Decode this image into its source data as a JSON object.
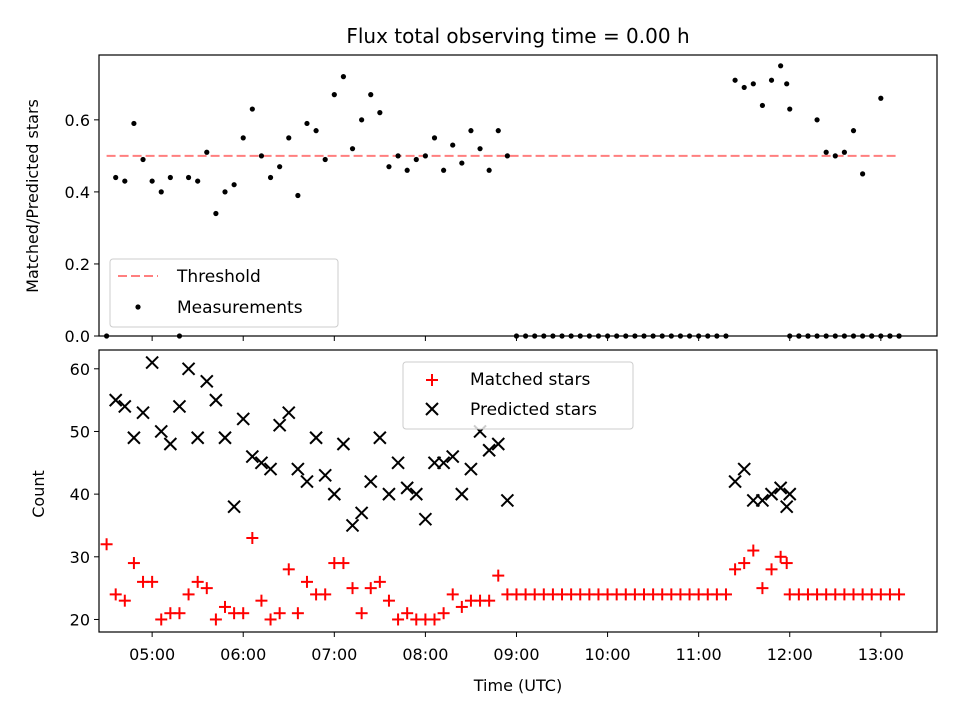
{
  "chart_data": [
    {
      "type": "scatter",
      "title": "Flux total observing time = 0.00 h",
      "xlabel": "",
      "ylabel": "Matched/Predicted stars",
      "xlim": [
        "04:25",
        "13:37"
      ],
      "ylim": [
        0,
        0.78
      ],
      "yticks": [
        0.0,
        0.2,
        0.4,
        0.6
      ],
      "ytick_labels": [
        "0.0",
        "0.2",
        "0.4",
        "0.6"
      ],
      "legend_position": "lower-left",
      "colors": {
        "threshold": "#ff7f7f",
        "measurements": "#000000"
      },
      "threshold": {
        "name": "Threshold",
        "value": 0.5,
        "x_start": "04:30",
        "x_end": "13:12"
      },
      "series": [
        {
          "name": "Measurements",
          "x": [
            "04:30",
            "04:36",
            "04:42",
            "04:48",
            "04:54",
            "05:00",
            "05:06",
            "05:12",
            "05:18",
            "05:24",
            "05:30",
            "05:36",
            "05:42",
            "05:48",
            "05:54",
            "06:00",
            "06:06",
            "06:12",
            "06:18",
            "06:24",
            "06:30",
            "06:36",
            "06:42",
            "06:48",
            "06:54",
            "07:00",
            "07:06",
            "07:12",
            "07:18",
            "07:24",
            "07:30",
            "07:36",
            "07:42",
            "07:48",
            "07:54",
            "08:00",
            "08:06",
            "08:12",
            "08:18",
            "08:24",
            "08:30",
            "08:36",
            "08:42",
            "08:48",
            "08:54",
            "11:24",
            "11:30",
            "11:36",
            "11:42",
            "11:48",
            "11:54",
            "11:58",
            "12:00",
            "12:06",
            "12:12",
            "12:18",
            "12:24",
            "12:30",
            "12:36",
            "12:42",
            "12:48",
            "12:54",
            "13:00",
            "13:06",
            "13:12"
          ],
          "y": [
            0.0,
            0.44,
            0.43,
            0.59,
            0.49,
            0.43,
            0.4,
            0.44,
            0.0,
            0.44,
            0.43,
            0.51,
            0.34,
            0.4,
            0.42,
            0.55,
            0.63,
            0.5,
            0.44,
            0.47,
            0.55,
            0.39,
            0.59,
            0.57,
            0.49,
            0.67,
            0.72,
            0.52,
            0.6,
            0.67,
            0.62,
            0.47,
            0.5,
            0.46,
            0.49,
            0.5,
            0.55,
            0.46,
            0.53,
            0.48,
            0.57,
            0.52,
            0.46,
            0.57,
            0.5,
            0.71,
            0.69,
            0.7,
            0.64,
            0.71,
            0.75,
            0.7,
            0.63,
            0.0,
            0.0,
            0.6,
            0.51,
            0.5,
            0.51,
            0.57,
            0.45,
            0.0,
            0.66,
            0.0,
            0.0
          ],
          "note_zero_run": "Continuous zero values from 09:00 to 11:18 and 12:00 to 13:12 every 6 minutes"
        }
      ],
      "zero_runs": [
        [
          "09:00",
          "11:18"
        ],
        [
          "12:00",
          "13:12"
        ]
      ]
    },
    {
      "type": "scatter",
      "title": "",
      "xlabel": "Time (UTC)",
      "ylabel": "Count",
      "xlim": [
        "04:25",
        "13:37"
      ],
      "ylim": [
        18,
        63
      ],
      "yticks": [
        20,
        30,
        40,
        50,
        60
      ],
      "ytick_labels": [
        "20",
        "30",
        "40",
        "50",
        "60"
      ],
      "xticks": [
        "05:00",
        "06:00",
        "07:00",
        "08:00",
        "09:00",
        "10:00",
        "11:00",
        "12:00",
        "13:00"
      ],
      "legend_position": "top-center",
      "colors": {
        "matched": "#ff0000",
        "predicted": "#000000"
      },
      "series": [
        {
          "name": "Matched stars",
          "marker": "plus",
          "x": [
            "04:30",
            "04:36",
            "04:42",
            "04:48",
            "04:54",
            "05:00",
            "05:06",
            "05:12",
            "05:18",
            "05:24",
            "05:30",
            "05:36",
            "05:42",
            "05:48",
            "05:54",
            "06:00",
            "06:06",
            "06:12",
            "06:18",
            "06:24",
            "06:30",
            "06:36",
            "06:42",
            "06:48",
            "06:54",
            "07:00",
            "07:06",
            "07:12",
            "07:18",
            "07:24",
            "07:30",
            "07:36",
            "07:42",
            "07:48",
            "07:54",
            "08:00",
            "08:06",
            "08:12",
            "08:18",
            "08:24",
            "08:30",
            "08:36",
            "08:42",
            "08:48",
            "08:54",
            "11:24",
            "11:30",
            "11:36",
            "11:42",
            "11:48",
            "11:54",
            "11:58",
            "12:00"
          ],
          "y": [
            32,
            24,
            23,
            29,
            26,
            26,
            20,
            21,
            21,
            24,
            26,
            25,
            20,
            22,
            21,
            21,
            33,
            23,
            20,
            21,
            28,
            21,
            26,
            24,
            24,
            29,
            29,
            25,
            21,
            25,
            26,
            23,
            20,
            21,
            20,
            20,
            20,
            21,
            24,
            22,
            23,
            23,
            23,
            27,
            24,
            28,
            29,
            31,
            25,
            28,
            30,
            29,
            24
          ]
        },
        {
          "name": "Predicted stars",
          "marker": "x",
          "x": [
            "04:36",
            "04:42",
            "04:48",
            "04:54",
            "05:00",
            "05:06",
            "05:12",
            "05:18",
            "05:24",
            "05:30",
            "05:36",
            "05:42",
            "05:48",
            "05:54",
            "06:00",
            "06:06",
            "06:12",
            "06:18",
            "06:24",
            "06:30",
            "06:36",
            "06:42",
            "06:48",
            "06:54",
            "07:00",
            "07:06",
            "07:12",
            "07:18",
            "07:24",
            "07:30",
            "07:36",
            "07:42",
            "07:48",
            "07:54",
            "08:00",
            "08:06",
            "08:12",
            "08:18",
            "08:24",
            "08:30",
            "08:36",
            "08:42",
            "08:48",
            "08:54",
            "11:24",
            "11:30",
            "11:36",
            "11:42",
            "11:48",
            "11:54",
            "11:58",
            "12:00"
          ],
          "y": [
            55,
            54,
            49,
            53,
            61,
            50,
            48,
            54,
            60,
            49,
            58,
            55,
            49,
            38,
            52,
            46,
            45,
            44,
            51,
            53,
            44,
            42,
            49,
            43,
            40,
            48,
            35,
            37,
            42,
            49,
            40,
            45,
            41,
            40,
            36,
            45,
            45,
            46,
            40,
            44,
            50,
            47,
            48,
            39,
            42,
            44,
            39,
            39,
            40,
            41,
            38,
            40
          ]
        }
      ]
    }
  ]
}
